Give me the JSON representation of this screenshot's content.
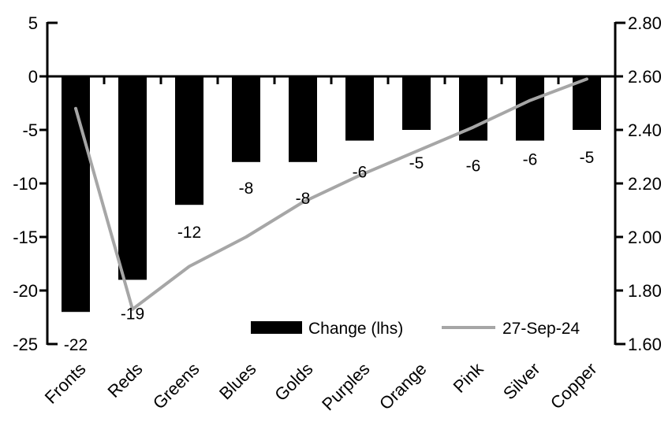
{
  "chart_data": {
    "type": "combo",
    "title": "",
    "categories": [
      "Fronts",
      "Reds",
      "Greens",
      "Blues",
      "Golds",
      "Purples",
      "Orange",
      "Pink",
      "Silver",
      "Copper"
    ],
    "series": [
      {
        "name": "Change (lhs)",
        "type": "bar",
        "axis": "left",
        "color": "#000000",
        "values": [
          -22,
          -19,
          -12,
          -8,
          -8,
          -6,
          -5,
          -6,
          -6,
          -5
        ],
        "data_labels": [
          "-22",
          "-19",
          "-12",
          "-8",
          "-8",
          "-6",
          "-5",
          "-6",
          "-6",
          "-5"
        ]
      },
      {
        "name": "27-Sep-24",
        "type": "line",
        "axis": "right",
        "color": "#a6a6a6",
        "values": [
          2.48,
          1.73,
          1.89,
          2.0,
          2.13,
          2.23,
          2.32,
          2.41,
          2.51,
          2.59
        ]
      }
    ],
    "left_axis": {
      "min": -25,
      "max": 5,
      "tick_step": 5,
      "tick_labels": [
        "5",
        "0",
        "-5",
        "-10",
        "-15",
        "-20",
        "-25"
      ]
    },
    "right_axis": {
      "min": 1.6,
      "max": 2.8,
      "tick_step": 0.2,
      "tick_labels": [
        "2.80",
        "2.60",
        "2.40",
        "2.20",
        "2.00",
        "1.80",
        "1.60"
      ]
    },
    "legend": {
      "position": "bottom-inside",
      "entries": [
        "Change (lhs)",
        "27-Sep-24"
      ]
    },
    "grid": false,
    "category_label_angle_deg": -45,
    "background": "#ffffff",
    "axis_color": "#000000"
  }
}
